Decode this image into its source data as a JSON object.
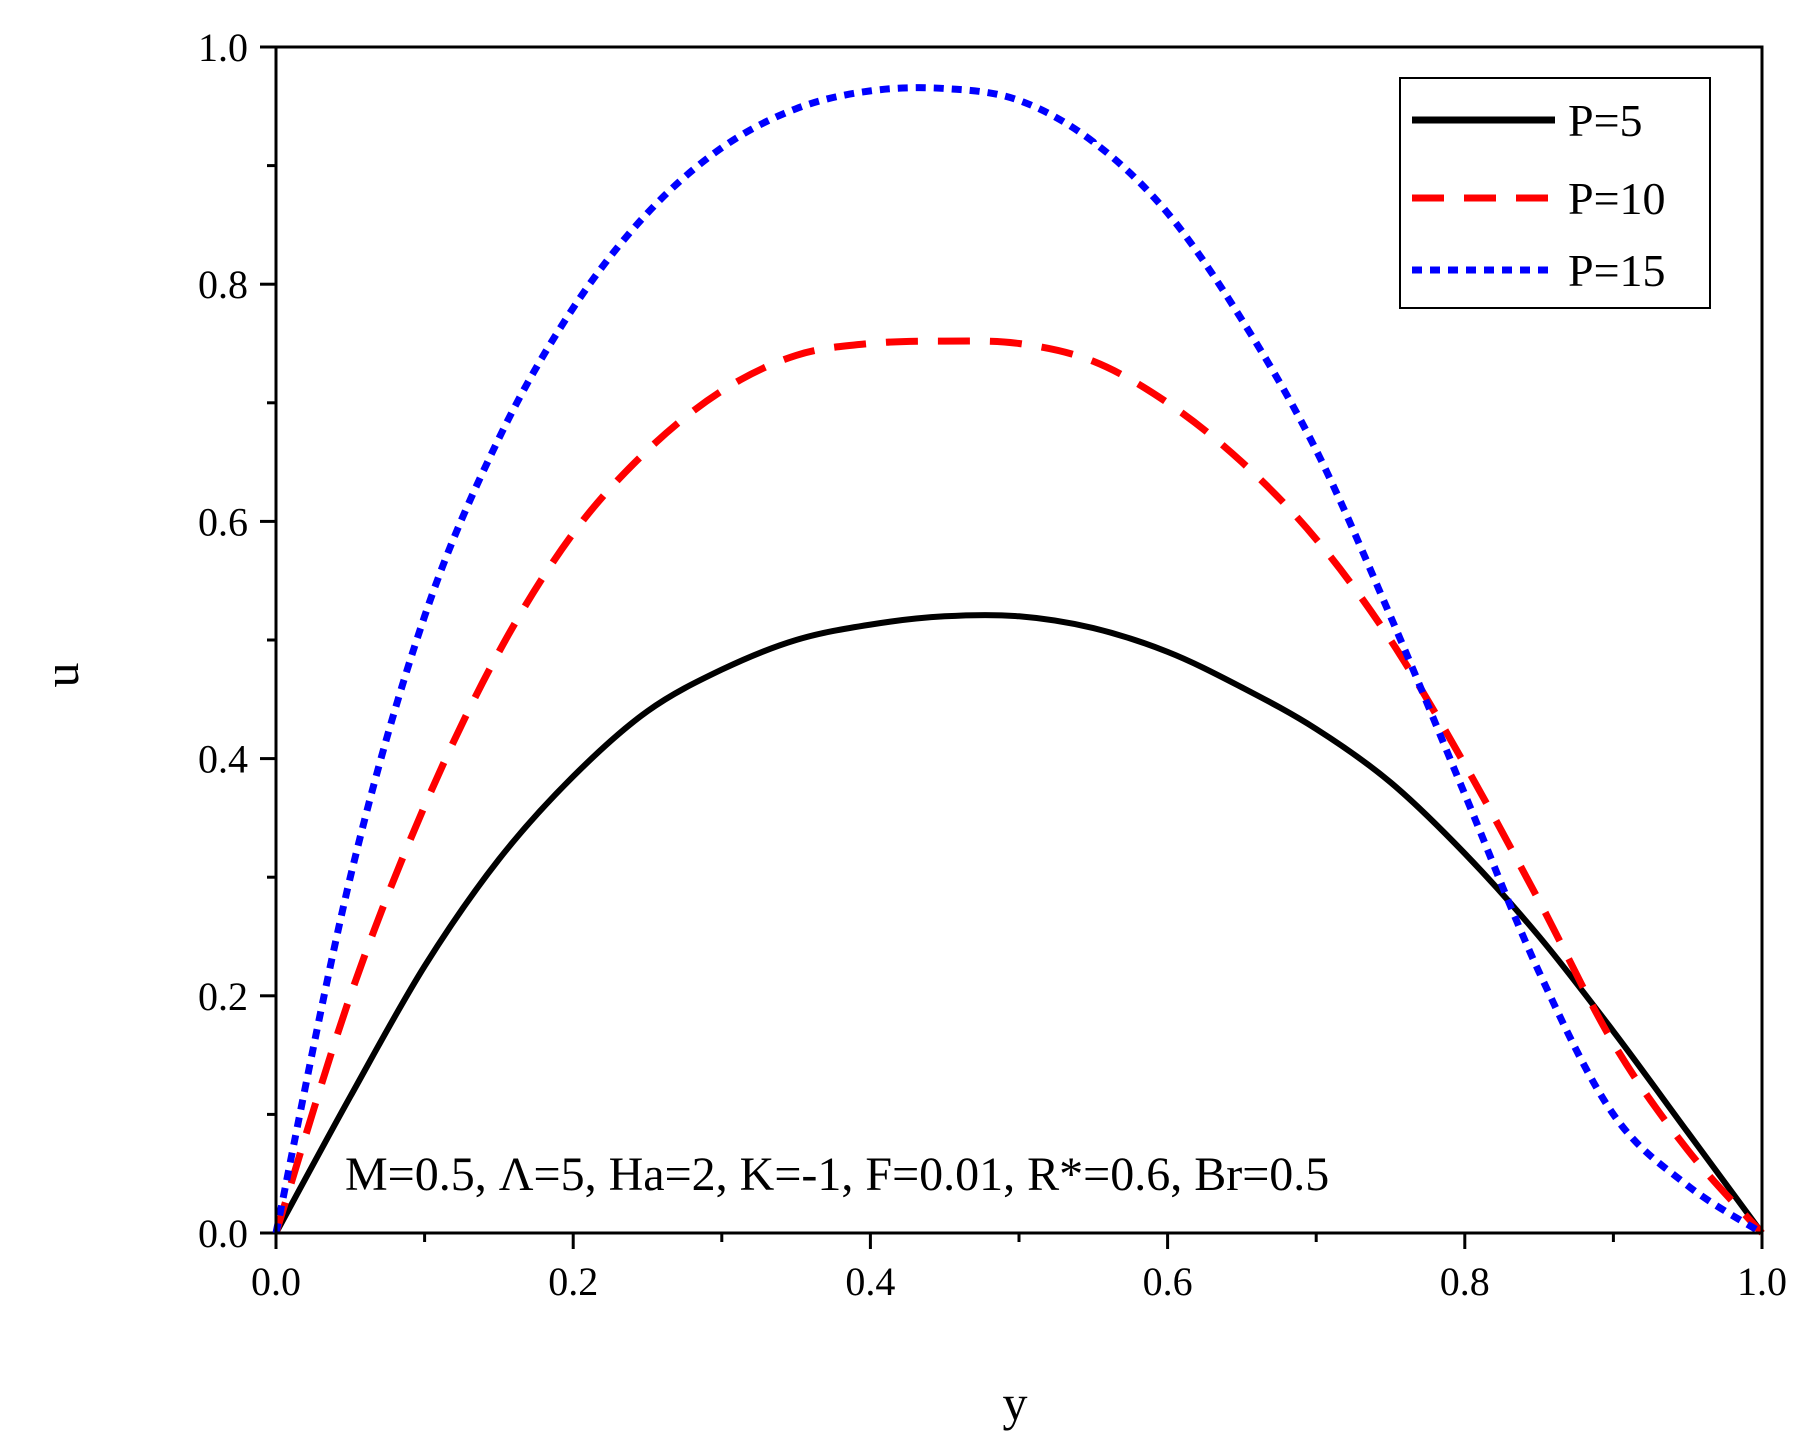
{
  "chart_data": {
    "type": "line",
    "xlabel": "y",
    "ylabel": "u",
    "xlim": [
      0,
      1
    ],
    "ylim": [
      0,
      1
    ],
    "x_ticks": [
      "0.0",
      "0.2",
      "0.4",
      "0.6",
      "0.8",
      "1.0"
    ],
    "y_ticks": [
      "0.0",
      "0.2",
      "0.4",
      "0.6",
      "0.8",
      "1.0"
    ],
    "legend_position": "top-right",
    "annotation": "M=0.5, Λ=5, Ha=2, K=-1, F=0.01, R*=0.6, Br=0.5",
    "x": [
      0,
      0.05,
      0.1,
      0.15,
      0.2,
      0.25,
      0.3,
      0.35,
      0.4,
      0.45,
      0.5,
      0.55,
      0.6,
      0.65,
      0.7,
      0.75,
      0.8,
      0.85,
      0.9,
      0.95,
      1.0
    ],
    "series": [
      {
        "name": "P=5",
        "color": "#000000",
        "style": "solid",
        "values": [
          0,
          0.115,
          0.225,
          0.315,
          0.385,
          0.44,
          0.475,
          0.5,
          0.513,
          0.52,
          0.52,
          0.51,
          0.49,
          0.46,
          0.425,
          0.38,
          0.32,
          0.25,
          0.17,
          0.085,
          0
        ]
      },
      {
        "name": "P=10",
        "color": "#ff0000",
        "style": "dashed",
        "values": [
          0,
          0.2,
          0.36,
          0.49,
          0.59,
          0.66,
          0.71,
          0.74,
          0.75,
          0.752,
          0.75,
          0.735,
          0.7,
          0.65,
          0.585,
          0.5,
          0.395,
          0.28,
          0.16,
          0.07,
          0
        ]
      },
      {
        "name": "P=15",
        "color": "#0000ff",
        "style": "dotted",
        "values": [
          0,
          0.3,
          0.52,
          0.67,
          0.78,
          0.86,
          0.915,
          0.948,
          0.963,
          0.965,
          0.955,
          0.92,
          0.86,
          0.77,
          0.66,
          0.52,
          0.37,
          0.22,
          0.1,
          0.04,
          0
        ]
      }
    ]
  }
}
